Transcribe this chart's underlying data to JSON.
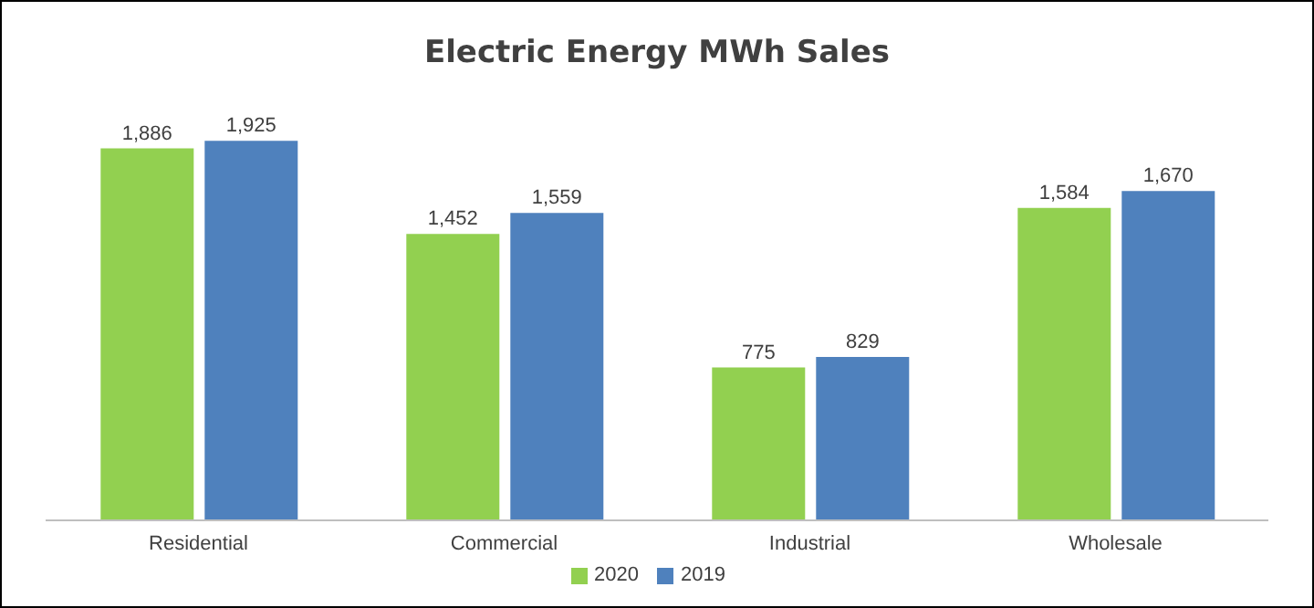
{
  "chart_data": {
    "type": "bar",
    "title": "Electric Energy MWh Sales",
    "categories": [
      "Residential",
      "Commercial",
      "Industrial",
      "Wholesale"
    ],
    "series": [
      {
        "name": "2020",
        "color": "#92d050",
        "values": [
          1886,
          1452,
          775,
          1584
        ],
        "value_labels": [
          "1,886",
          "1,452",
          "775",
          "1,584"
        ]
      },
      {
        "name": "2019",
        "color": "#4f81bd",
        "values": [
          1925,
          1559,
          829,
          1670
        ],
        "value_labels": [
          "1,925",
          "1,559",
          "829",
          "1,670"
        ]
      }
    ],
    "grid": false,
    "legend": "bottom"
  }
}
